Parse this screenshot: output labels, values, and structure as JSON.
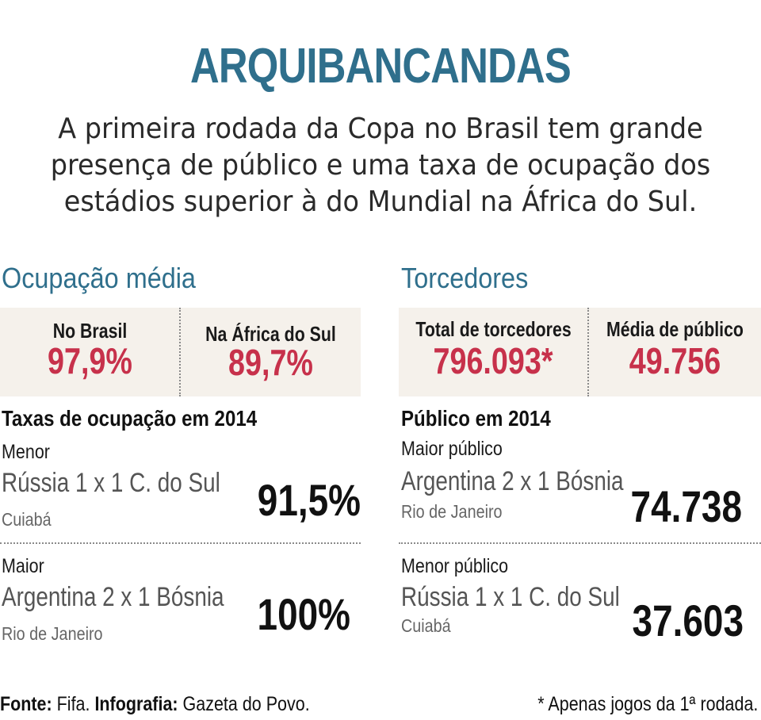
{
  "title": "ARQUIBANCANDAS",
  "subtitle": {
    "line1": "A primeira rodada da Copa no Brasil tem grande",
    "line2": "presença de público e uma taxa de ocupação dos",
    "line3": "estádios superior à do Mundial na África do Sul."
  },
  "occupancy": {
    "heading": "Ocupação média",
    "brazil_label": "No Brasil",
    "brazil_value": "97,9%",
    "africa_label": "Na África do Sul",
    "africa_value": "89,7%",
    "rates_heading": "Taxas de ocupação em 2014",
    "lowest": {
      "label": "Menor",
      "match": "Rússia 1 x 1 C. do Sul",
      "venue": "Cuiabá",
      "value": "91,5%"
    },
    "highest": {
      "label": "Maior",
      "match": "Argentina 2 x 1 Bósnia",
      "venue": "Rio de Janeiro",
      "value": "100%"
    }
  },
  "fans": {
    "heading": "Torcedores",
    "total_label": "Total de torcedores",
    "total_value": "796.093*",
    "avg_label": "Média de público",
    "avg_value": "49.756",
    "attendance_heading": "Público em 2014",
    "largest": {
      "label": "Maior público",
      "match": "Argentina 2 x 1 Bósnia",
      "venue": "Rio de Janeiro",
      "value": "74.738"
    },
    "smallest": {
      "label": "Menor público",
      "match": "Rússia 1 x 1 C. do Sul",
      "venue": "Cuiabá",
      "value": "37.603"
    }
  },
  "footer": {
    "source_label": "Fonte:",
    "source_value": " Fifa.",
    "credit_label": " Infografia:",
    "credit_value": " Gazeta do Povo.",
    "note": "* Apenas jogos da 1ª rodada."
  },
  "colors": {
    "heading_blue": "#2f6f8c",
    "value_red": "#c7314b",
    "box_bg": "#f5f1eb"
  }
}
